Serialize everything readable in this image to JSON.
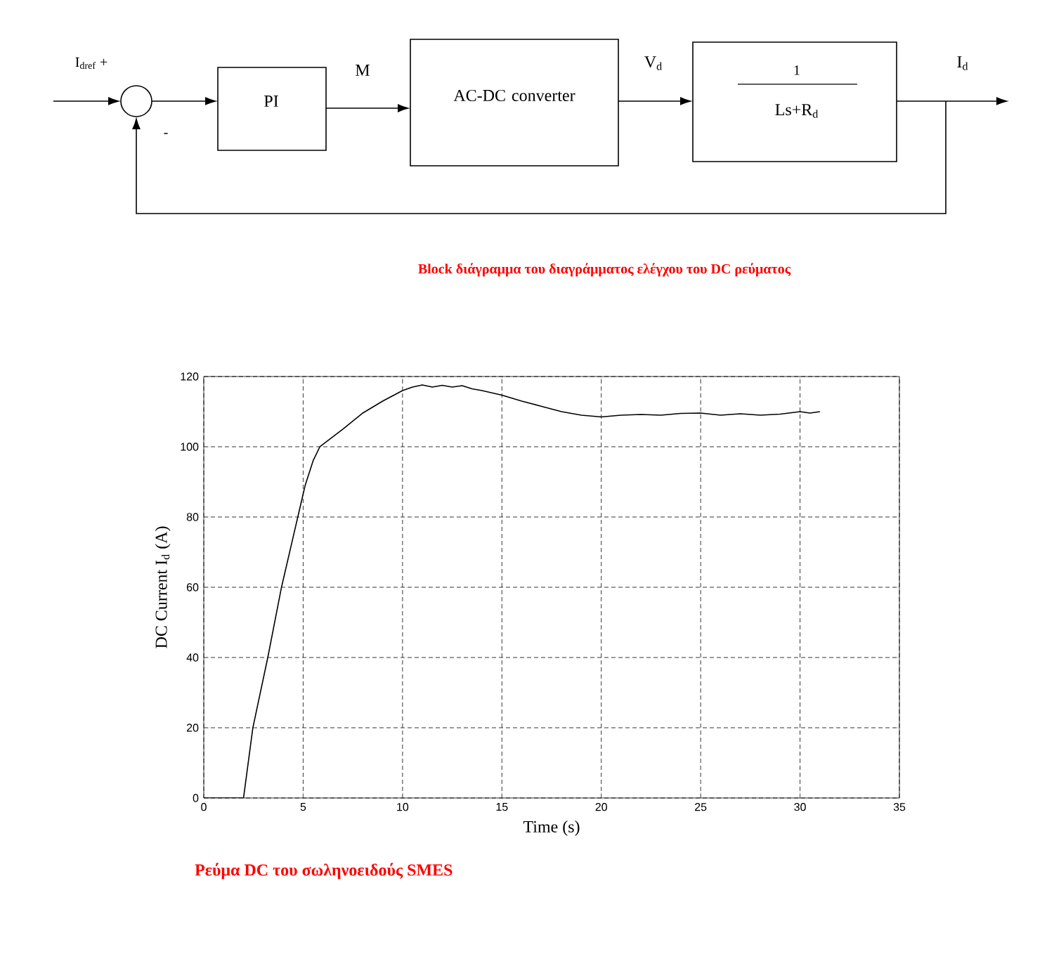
{
  "chart_data": [
    {
      "type": "other",
      "annotations": [
        "I$_{dref}$ +",
        "-",
        "PI",
        "M",
        "AC-DC converter",
        "V$_{d}$",
        "1",
        "Ls+R$_{d}$",
        "I$_{d}$",
        "Block διάγραμμα του διαγράμματος ελέγχου του DC ρεύματος"
      ]
    },
    {
      "type": "line",
      "xlabel": "Time (s)",
      "ylabel": "DC Current I$_{d}$ (A)",
      "annotations": [
        "Ρεύμα DC του σωληνοειδούς SMES"
      ],
      "xlim": [
        0,
        35
      ],
      "ylim": [
        0,
        120
      ],
      "xticks": [
        0,
        5,
        10,
        15,
        20,
        25,
        30,
        35
      ],
      "yticks": [
        0,
        20,
        40,
        60,
        80,
        100,
        120
      ],
      "grid": true,
      "series": [
        {
          "color": "#000000",
          "x": [
            0,
            2,
            2.47,
            3.22,
            3.91,
            4.73,
            5.1,
            5.5,
            5.84,
            7,
            8,
            9,
            10,
            10.5,
            11,
            11.5,
            12,
            12.5,
            13,
            13.5,
            14,
            15,
            16,
            17,
            18,
            19,
            20,
            21,
            22,
            23,
            24,
            25,
            26,
            27,
            28,
            29,
            30,
            30.5,
            31
          ],
          "values": [
            0,
            0,
            20,
            40,
            60,
            80,
            89,
            96,
            100,
            105,
            109.6,
            113,
            116,
            117,
            117.6,
            117,
            117.5,
            117,
            117.4,
            116.5,
            116,
            114.7,
            113,
            111.5,
            110,
            109,
            108.5,
            109,
            109.2,
            109,
            109.5,
            109.6,
            109,
            109.4,
            109,
            109.3,
            110,
            109.6,
            110
          ]
        }
      ]
    }
  ]
}
